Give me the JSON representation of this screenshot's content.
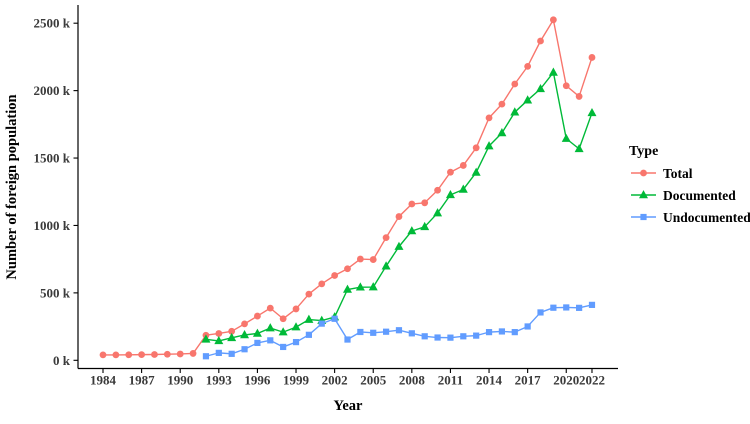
{
  "chart_data": {
    "type": "line",
    "title": "",
    "xlabel": "Year",
    "ylabel": "Number of foreign population",
    "unit": "thousands",
    "legend_title": "Type",
    "legend_position": "right",
    "grid": false,
    "x_tick_years": [
      1984,
      1987,
      1990,
      1993,
      1996,
      1999,
      2002,
      2005,
      2008,
      2011,
      2014,
      2017,
      2020,
      2022
    ],
    "x_tick_labels": [
      "1984",
      "1987",
      "1990",
      "1993",
      "1996",
      "1999",
      "2002",
      "2005",
      "2008",
      "2011",
      "2014",
      "2017",
      "2020",
      "2022"
    ],
    "y_tick_values": [
      0,
      500,
      1000,
      1500,
      2000,
      2500
    ],
    "y_tick_labels": [
      "0 k",
      "500 k",
      "1000 k",
      "1500 k",
      "2000 k",
      "2500 k"
    ],
    "x_range": [
      1984,
      2022
    ],
    "ylim": [
      0,
      2600
    ],
    "series": [
      {
        "name": "Total",
        "color": "#F8766D",
        "marker": "circle",
        "x": [
          1984,
          1985,
          1986,
          1987,
          1988,
          1989,
          1990,
          1991,
          1992,
          1993,
          1994,
          1995,
          1996,
          1997,
          1998,
          1999,
          2000,
          2001,
          2002,
          2003,
          2004,
          2005,
          2006,
          2007,
          2008,
          2009,
          2010,
          2011,
          2012,
          2013,
          2014,
          2015,
          2016,
          2017,
          2018,
          2019,
          2020,
          2021,
          2022
        ],
        "values": [
          40,
          40,
          41,
          42,
          43,
          45,
          47,
          51,
          186,
          199,
          215,
          270,
          328,
          387,
          308,
          381,
          491,
          567,
          629,
          679,
          751,
          747,
          910,
          1066,
          1159,
          1168,
          1261,
          1395,
          1445,
          1576,
          1798,
          1900,
          2049,
          2180,
          2368,
          2525,
          2036,
          1957,
          2246
        ]
      },
      {
        "name": "Documented",
        "color": "#00BA38",
        "marker": "triangle",
        "x": [
          1992,
          1993,
          1994,
          1995,
          1996,
          1997,
          1998,
          1999,
          2000,
          2001,
          2002,
          2003,
          2004,
          2005,
          2006,
          2007,
          2008,
          2009,
          2010,
          2011,
          2012,
          2013,
          2014,
          2015,
          2016,
          2017,
          2018,
          2019,
          2020,
          2021,
          2022
        ],
        "values": [
          156,
          144,
          167,
          188,
          199,
          239,
          209,
          246,
          302,
          295,
          321,
          525,
          542,
          543,
          698,
          843,
          959,
          990,
          1092,
          1227,
          1267,
          1393,
          1589,
          1686,
          1840,
          1929,
          2013,
          2135,
          1644,
          1568,
          1835
        ]
      },
      {
        "name": "Undocumented",
        "color": "#619CFF",
        "marker": "square",
        "x": [
          1992,
          1993,
          1994,
          1995,
          1996,
          1997,
          1998,
          1999,
          2000,
          2001,
          2002,
          2003,
          2004,
          2005,
          2006,
          2007,
          2008,
          2009,
          2010,
          2011,
          2012,
          2013,
          2014,
          2015,
          2016,
          2017,
          2018,
          2019,
          2020,
          2021,
          2022
        ],
        "values": [
          30,
          55,
          48,
          82,
          129,
          148,
          99,
          135,
          189,
          272,
          308,
          154,
          210,
          204,
          212,
          223,
          200,
          178,
          169,
          168,
          178,
          183,
          209,
          214,
          209,
          251,
          355,
          390,
          392,
          389,
          411
        ]
      }
    ]
  }
}
